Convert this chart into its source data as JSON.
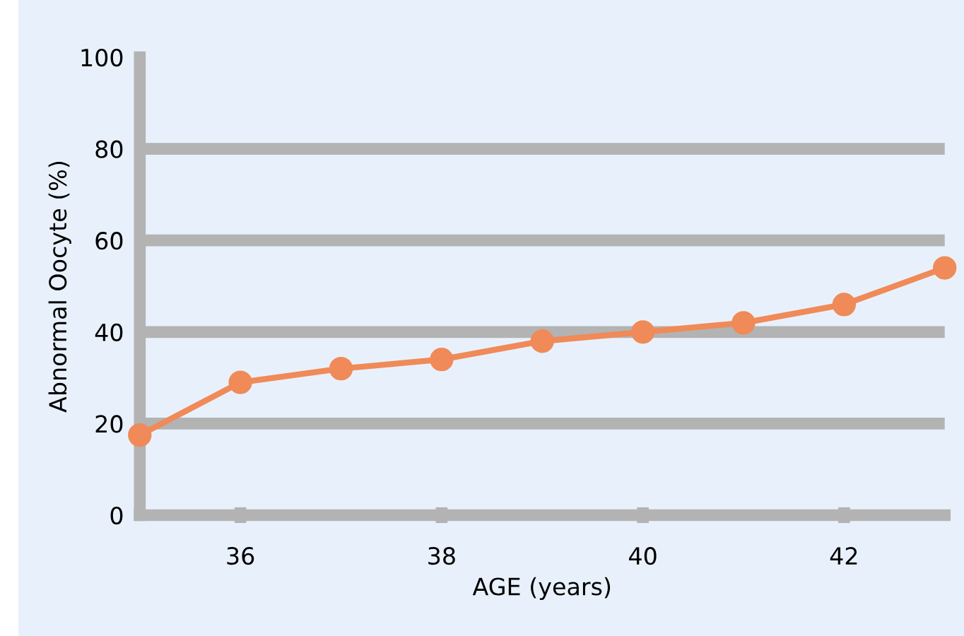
{
  "chart_data": {
    "type": "line",
    "xlabel": "AGE (years)",
    "ylabel": "Abnormal Oocyte (%)",
    "x": [
      35,
      36,
      37,
      38,
      39,
      40,
      41,
      42,
      43
    ],
    "series": [
      {
        "color": "#f08a58",
        "values": [
          17.5,
          29,
          32,
          34,
          38,
          40,
          42,
          46,
          54
        ]
      }
    ],
    "xlim": [
      35,
      43
    ],
    "xticks": [
      36,
      38,
      40,
      42
    ],
    "ylim": [
      0,
      100
    ],
    "yticks": [
      0,
      20,
      40,
      60,
      80,
      100
    ],
    "grid": "y",
    "marker": "circle",
    "line_style": "solid",
    "legend": false
  }
}
